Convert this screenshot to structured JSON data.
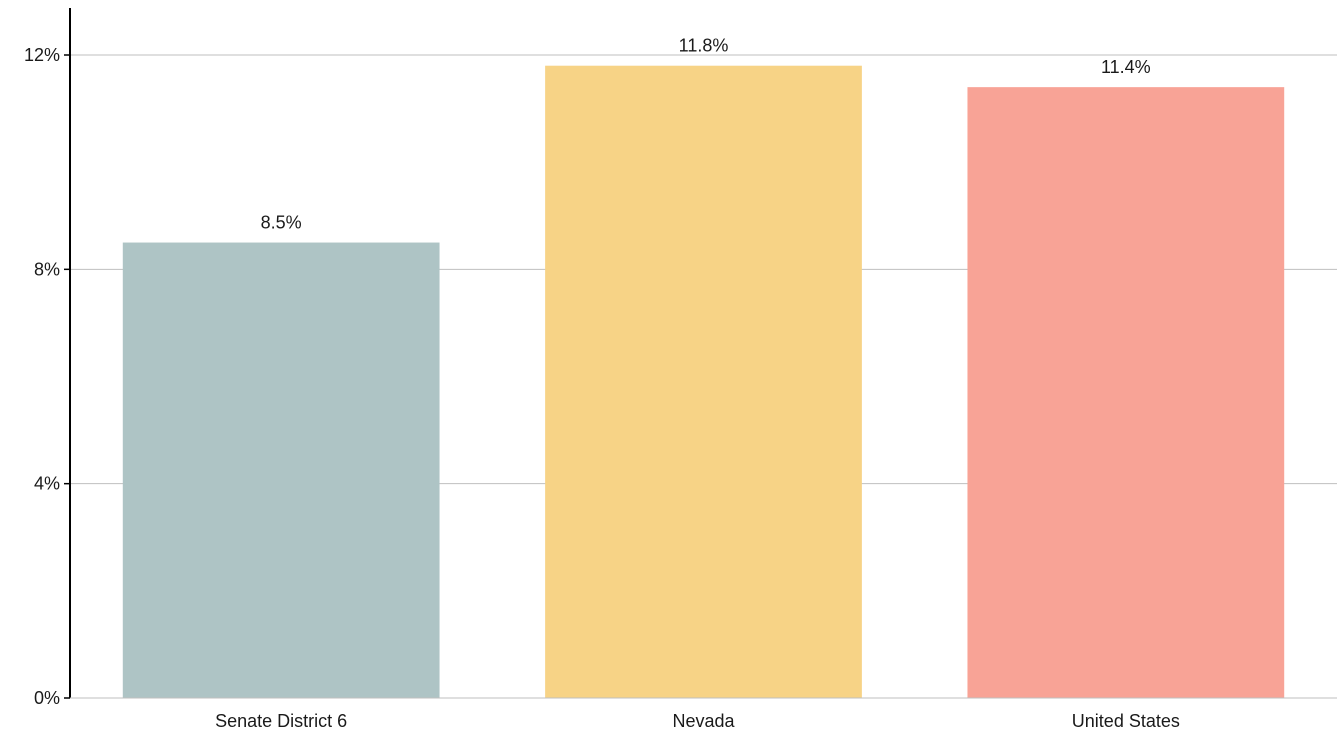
{
  "chart_data": {
    "type": "bar",
    "title": "",
    "xlabel": "",
    "ylabel": "",
    "categories": [
      "Senate District 6",
      "Nevada",
      "United States"
    ],
    "values": [
      8.5,
      11.8,
      11.4
    ],
    "value_labels": [
      "8.5%",
      "11.8%",
      "11.4%"
    ],
    "colors": [
      "#aec4c5",
      "#f7d386",
      "#f8a396"
    ],
    "ylim": [
      0,
      12
    ],
    "yticks": [
      0,
      4,
      8,
      12
    ],
    "ytick_labels": [
      "0%",
      "4%",
      "8%",
      "12%"
    ],
    "grid": true,
    "legend": "none"
  }
}
